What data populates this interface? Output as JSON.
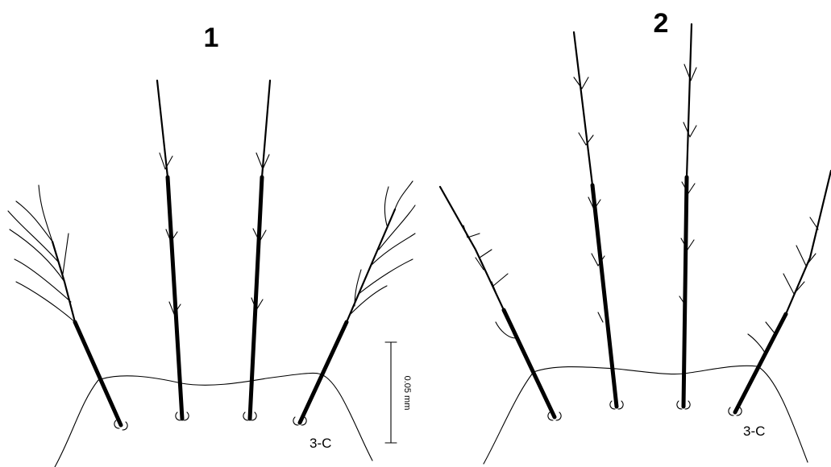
{
  "panels": [
    {
      "label": "1",
      "annotation": "3-C"
    },
    {
      "label": "2",
      "annotation": "3-C"
    }
  ],
  "scale_bar": {
    "label": "0.05 mm"
  }
}
